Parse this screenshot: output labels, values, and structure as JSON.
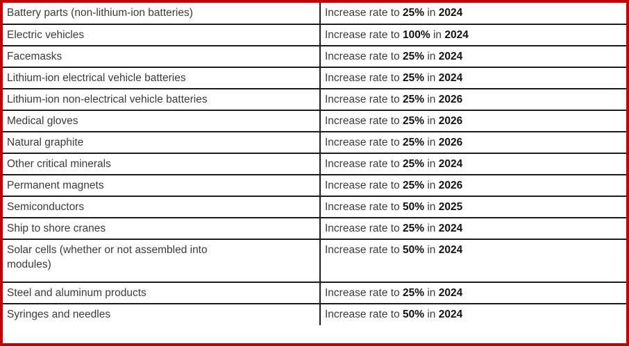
{
  "colors": {
    "outer_border": "#C00000",
    "inner_border": "#1B1B1B",
    "text": "#3A3A3A",
    "bold_text": "#121212",
    "background": "#FFFFFF"
  },
  "table": {
    "rate_prefix": "Increase rate to",
    "rate_infix": "in",
    "rows": [
      {
        "category_lines": [
          "Battery parts (non-lithium-ion batteries)"
        ],
        "rate": "25%",
        "year": "2024"
      },
      {
        "category_lines": [
          "Electric vehicles"
        ],
        "rate": "100%",
        "year": "2024"
      },
      {
        "category_lines": [
          "Facemasks"
        ],
        "rate": "25%",
        "year": "2024"
      },
      {
        "category_lines": [
          "Lithium-ion electrical vehicle batteries"
        ],
        "rate": "25%",
        "year": "2024"
      },
      {
        "category_lines": [
          "Lithium-ion non-electrical vehicle batteries"
        ],
        "rate": "25%",
        "year": "2026"
      },
      {
        "category_lines": [
          "Medical gloves"
        ],
        "rate": "25%",
        "year": "2026"
      },
      {
        "category_lines": [
          "Natural graphite"
        ],
        "rate": "25%",
        "year": "2026"
      },
      {
        "category_lines": [
          "Other critical minerals"
        ],
        "rate": "25%",
        "year": "2024"
      },
      {
        "category_lines": [
          "Permanent magnets"
        ],
        "rate": "25%",
        "year": "2026"
      },
      {
        "category_lines": [
          "Semiconductors"
        ],
        "rate": "50%",
        "year": "2025"
      },
      {
        "category_lines": [
          "Ship to shore cranes"
        ],
        "rate": "25%",
        "year": "2024"
      },
      {
        "category_lines": [
          "Solar cells (whether or not assembled into",
          "modules)"
        ],
        "rate": "50%",
        "year": "2024"
      },
      {
        "category_lines": [
          "Steel and aluminum products"
        ],
        "rate": "25%",
        "year": "2024"
      },
      {
        "category_lines": [
          "Syringes and needles"
        ],
        "rate": "50%",
        "year": "2024"
      }
    ]
  }
}
